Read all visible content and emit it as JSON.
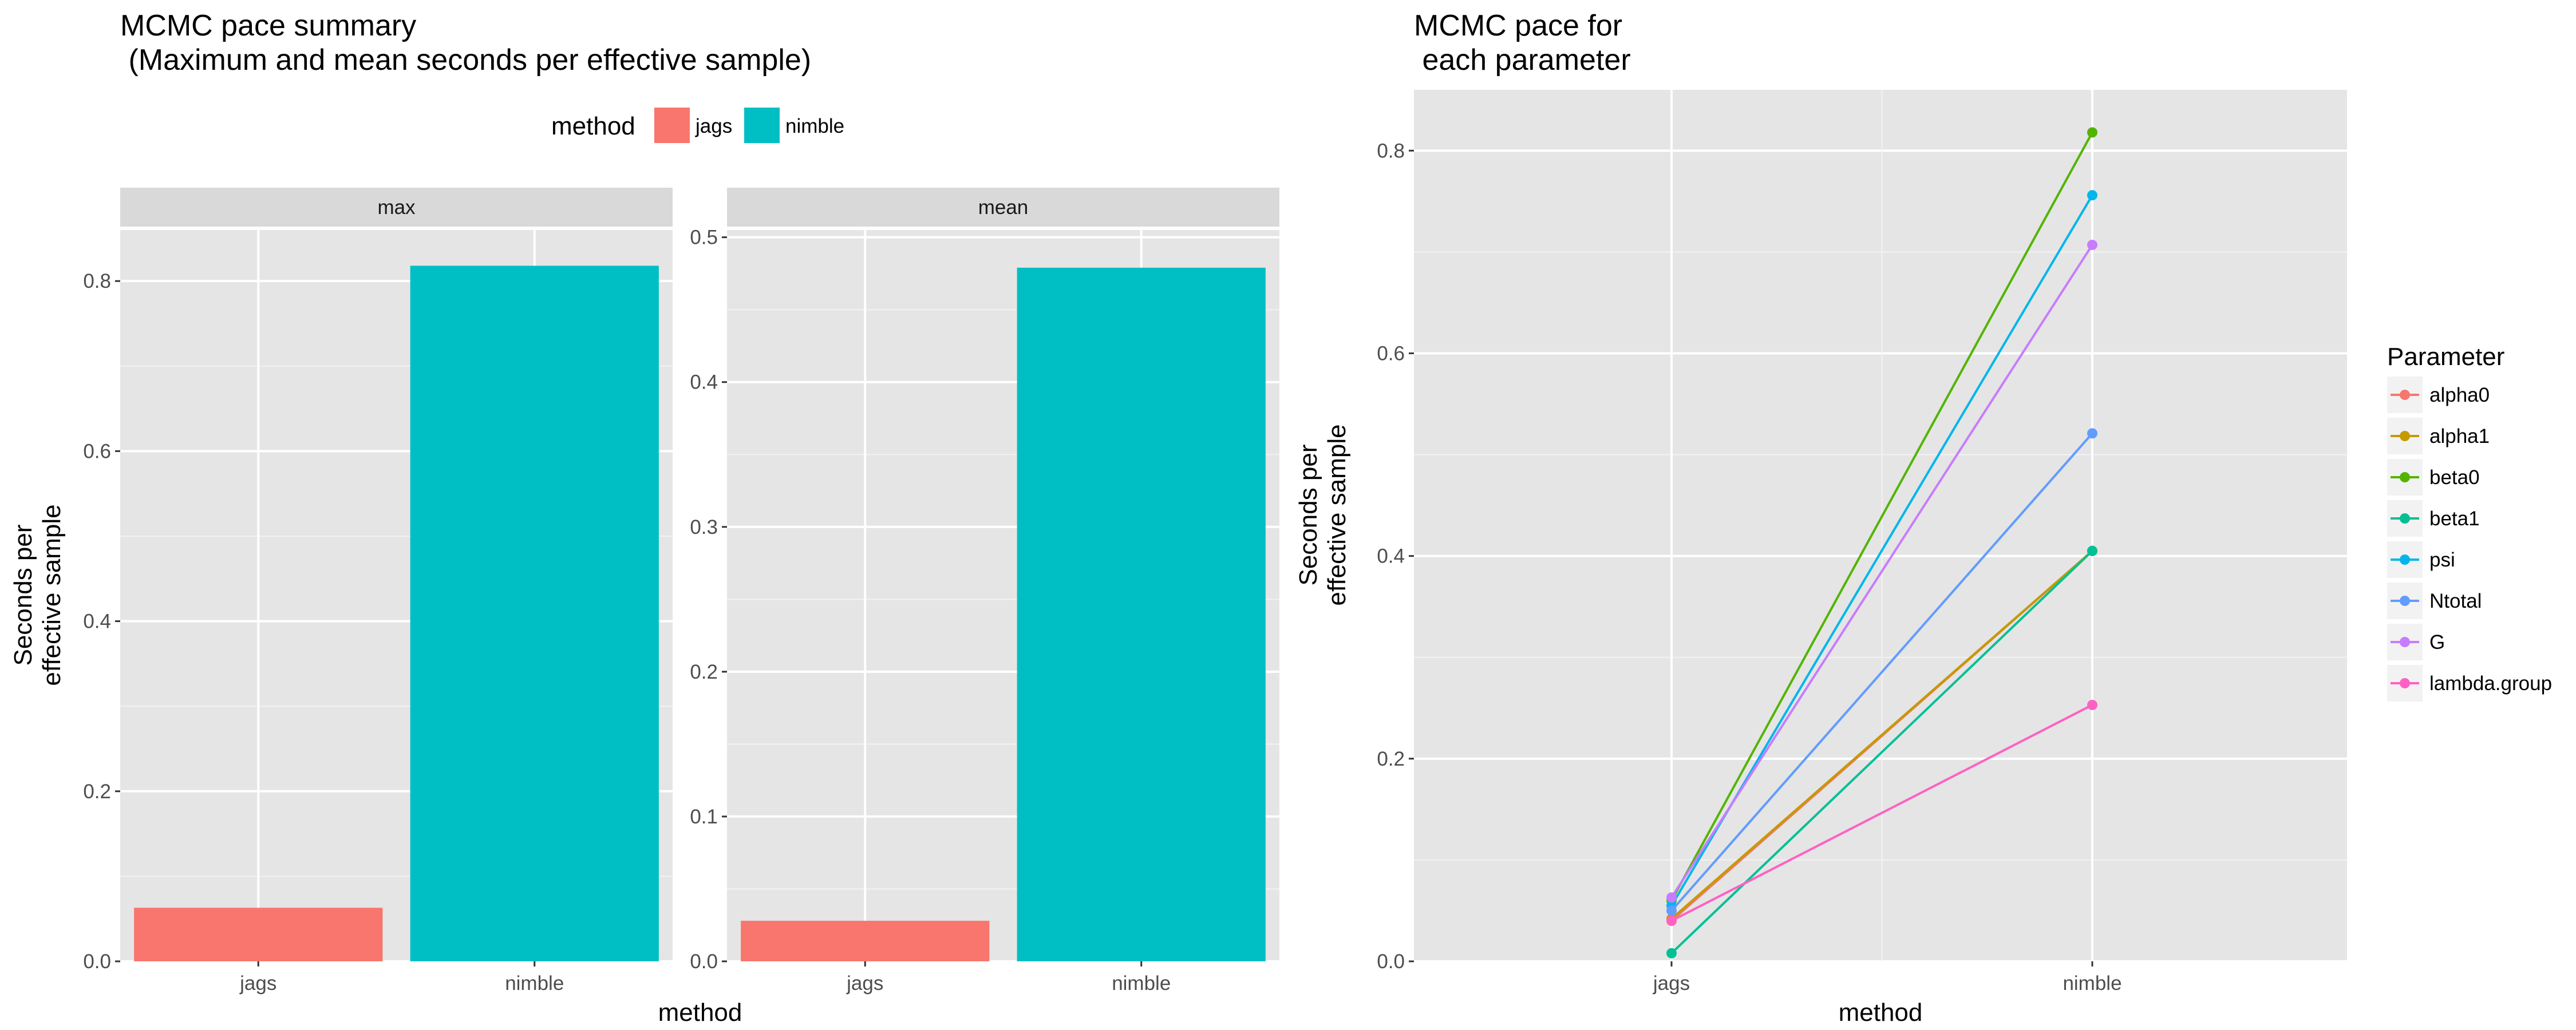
{
  "colors": {
    "jags": "#F8766D",
    "nimble": "#00BFC4"
  },
  "left_figure": {
    "title_line1": "MCMC pace summary",
    "title_line2": " (Maximum and mean seconds per effective sample)",
    "legend": {
      "title": "method",
      "items": [
        "jags",
        "nimble"
      ]
    },
    "xlabel": "method",
    "ylabel_line1": "Seconds per",
    "ylabel_line2": "effective sample"
  },
  "right_figure": {
    "title_line1": "MCMC pace for",
    "title_line2": " each parameter",
    "legend": {
      "title": "Parameter"
    },
    "xlabel": "method",
    "ylabel_line1": "Seconds per",
    "ylabel_line2": "effective sample"
  },
  "chart_data": [
    {
      "type": "bar",
      "facet": "max",
      "categories": [
        "jags",
        "nimble"
      ],
      "values": [
        0.063,
        0.818
      ],
      "ylim": [
        0,
        0.86
      ],
      "yticks": [
        "0.0",
        "0.2",
        "0.4",
        "0.6",
        "0.8"
      ],
      "ytick_values": [
        0,
        0.2,
        0.4,
        0.6,
        0.8
      ]
    },
    {
      "type": "bar",
      "facet": "mean",
      "categories": [
        "jags",
        "nimble"
      ],
      "values": [
        0.028,
        0.479
      ],
      "ylim": [
        0,
        0.505
      ],
      "yticks": [
        "0.0",
        "0.1",
        "0.2",
        "0.3",
        "0.4",
        "0.5"
      ],
      "ytick_values": [
        0,
        0.1,
        0.2,
        0.3,
        0.4,
        0.5
      ]
    },
    {
      "type": "line",
      "x": [
        "jags",
        "nimble"
      ],
      "ylim": [
        0,
        0.86
      ],
      "yticks": [
        "0.0",
        "0.2",
        "0.4",
        "0.6",
        "0.8"
      ],
      "ytick_values": [
        0,
        0.2,
        0.4,
        0.6,
        0.8
      ],
      "series": [
        {
          "name": "alpha0",
          "color": "#F8766D",
          "values": [
            0.04,
            0.405
          ]
        },
        {
          "name": "alpha1",
          "color": "#C49A00",
          "values": [
            0.042,
            0.405
          ]
        },
        {
          "name": "beta0",
          "color": "#53B400",
          "values": [
            0.06,
            0.818
          ]
        },
        {
          "name": "beta1",
          "color": "#00C094",
          "values": [
            0.008,
            0.405
          ]
        },
        {
          "name": "psi",
          "color": "#00B6EB",
          "values": [
            0.055,
            0.756
          ]
        },
        {
          "name": "Ntotal",
          "color": "#619CFF",
          "values": [
            0.05,
            0.521
          ]
        },
        {
          "name": "G",
          "color": "#C77CFF",
          "values": [
            0.063,
            0.707
          ]
        },
        {
          "name": "lambda.group",
          "color": "#FF61C3",
          "values": [
            0.04,
            0.253
          ]
        }
      ]
    }
  ]
}
